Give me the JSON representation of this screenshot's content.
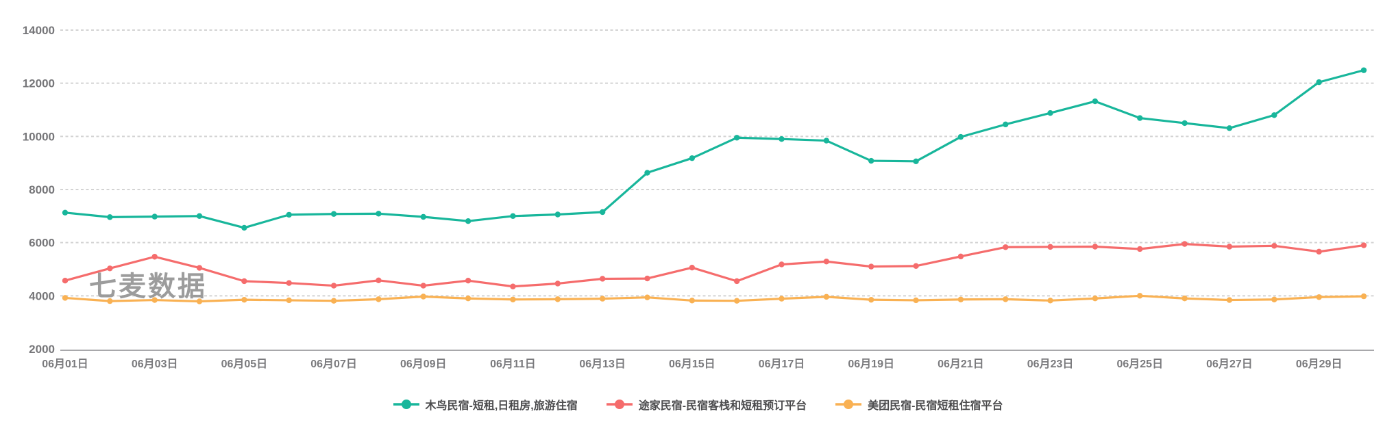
{
  "watermark": "七麦数据",
  "axis_style": {
    "grid_color": "#d3d3d3",
    "axis_line_color": "#a8a8ab",
    "label_color": "#7a7a7d"
  },
  "chart_data": {
    "type": "line",
    "title": "",
    "xlabel": "",
    "ylabel": "",
    "ylim": [
      2000,
      14000
    ],
    "y_ticks": [
      2000,
      4000,
      6000,
      8000,
      10000,
      12000,
      14000
    ],
    "y_tick_labels": [
      "2000",
      "4000",
      "6000",
      "8000",
      "10000",
      "12000",
      "14000"
    ],
    "grid": "horizontal-dashed",
    "legend_position": "bottom",
    "x_label_every": 2,
    "categories": [
      "06月01日",
      "06月02日",
      "06月03日",
      "06月04日",
      "06月05日",
      "06月06日",
      "06月07日",
      "06月08日",
      "06月09日",
      "06月10日",
      "06月11日",
      "06月12日",
      "06月13日",
      "06月14日",
      "06月15日",
      "06月16日",
      "06月17日",
      "06月18日",
      "06月19日",
      "06月20日",
      "06月21日",
      "06月22日",
      "06月23日",
      "06月24日",
      "06月25日",
      "06月26日",
      "06月27日",
      "06月28日",
      "06月29日",
      "06月30日"
    ],
    "series": [
      {
        "name": "木鸟民宿-短租,日租房,旅游住宿",
        "color": "#18b69b",
        "values": [
          7130,
          6960,
          6980,
          7000,
          6560,
          7050,
          7080,
          7090,
          6970,
          6810,
          7000,
          7060,
          7150,
          8630,
          9180,
          9950,
          9900,
          9840,
          9080,
          9060,
          9980,
          10450,
          10880,
          11320,
          10690,
          10500,
          10310,
          10800,
          12040,
          12490
        ]
      },
      {
        "name": "途家民宿-民宿客栈和短租预订平台",
        "color": "#f56c6c",
        "values": [
          4570,
          5030,
          5470,
          5050,
          4550,
          4480,
          4380,
          4580,
          4380,
          4570,
          4350,
          4460,
          4640,
          4650,
          5060,
          4550,
          5180,
          5290,
          5100,
          5120,
          5480,
          5830,
          5840,
          5850,
          5760,
          5950,
          5850,
          5880,
          5660,
          5900
        ]
      },
      {
        "name": "美团民宿-民宿短租住宿平台",
        "color": "#f9b153",
        "values": [
          3920,
          3800,
          3840,
          3790,
          3850,
          3830,
          3810,
          3870,
          3970,
          3900,
          3860,
          3870,
          3890,
          3940,
          3820,
          3810,
          3890,
          3960,
          3850,
          3830,
          3860,
          3870,
          3820,
          3900,
          4000,
          3900,
          3840,
          3860,
          3950,
          3980
        ]
      }
    ]
  }
}
